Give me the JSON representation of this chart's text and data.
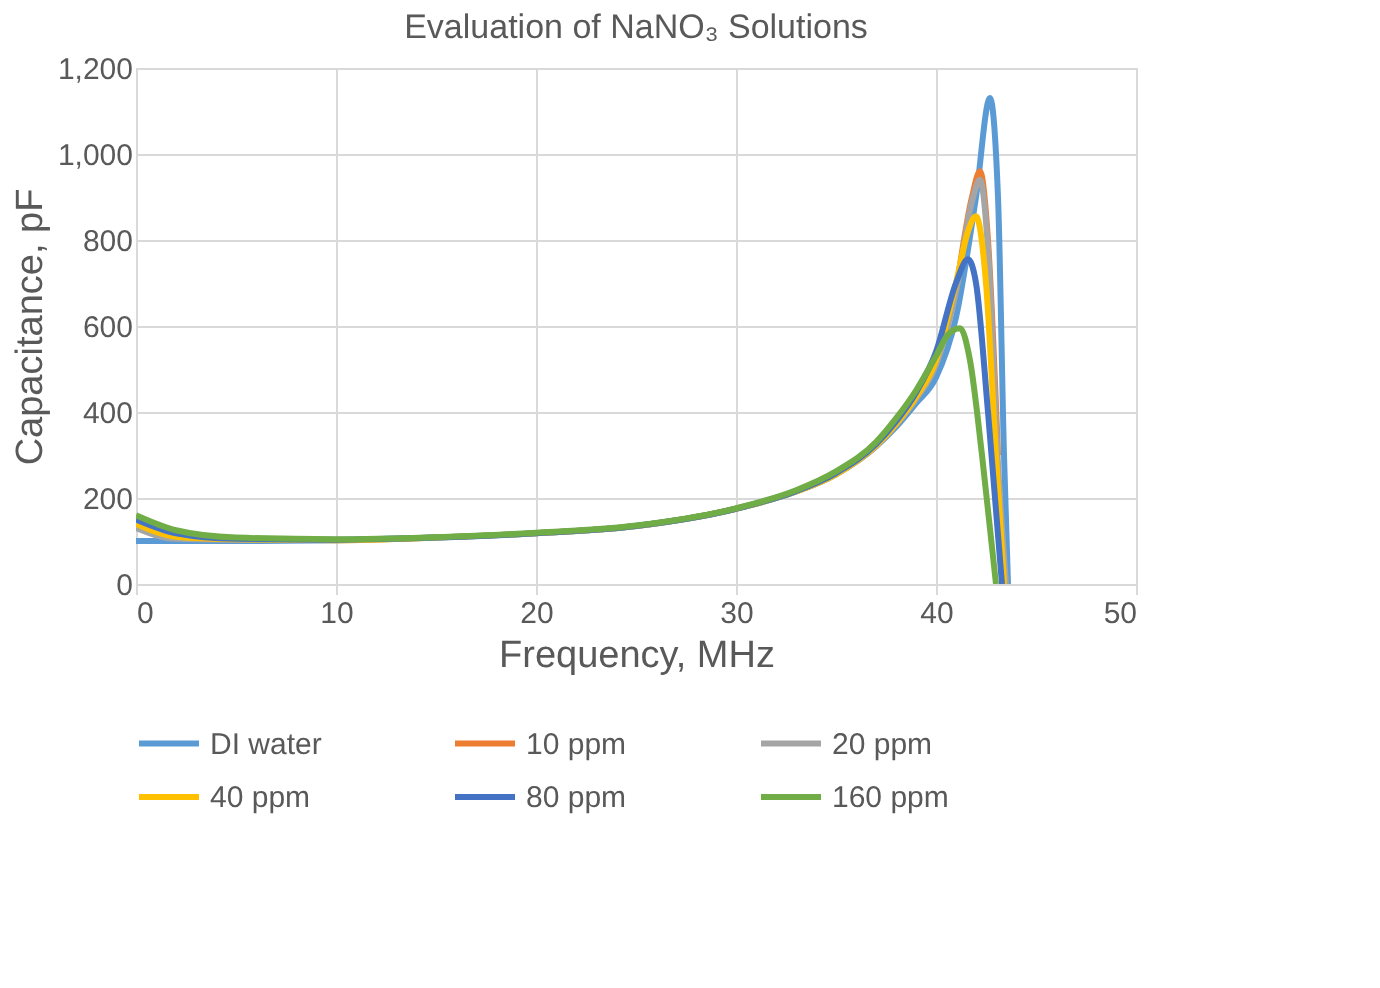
{
  "chart_data": {
    "type": "line",
    "title": "Evaluation of NaNO₃ Solutions",
    "xlabel": "Frequency, MHz",
    "ylabel": "Capacitance, pF",
    "xlim": [
      0,
      50
    ],
    "xticks": [
      0,
      10,
      20,
      30,
      40,
      50
    ],
    "ylim": [
      0,
      1200
    ],
    "yticks": [
      0,
      200,
      400,
      600,
      800,
      {
        "value": 1000,
        "label": "1,000"
      },
      {
        "value": 1200,
        "label": "1,200"
      }
    ],
    "grid": true,
    "legend": "bottom",
    "marker": "none",
    "line_style": "solid",
    "series": [
      {
        "name": "DI water",
        "color": "#5b9bd5",
        "x": [
          0,
          5,
          10,
          15,
          20,
          25,
          30,
          33,
          35,
          37,
          38,
          39,
          40,
          41,
          42,
          42.7,
          43.1,
          43.4,
          43.6
        ],
        "values": [
          100,
          100,
          102,
          108,
          118,
          135,
          175,
          215,
          255,
          320,
          365,
          420,
          480,
          620,
          900,
          1130,
          900,
          300,
          0
        ]
      },
      {
        "name": "10 ppm",
        "color": "#ed7d31",
        "x": [
          41,
          41.8,
          42.2,
          42.6,
          43.1
        ],
        "values": [
          680,
          900,
          960,
          800,
          300
        ]
      },
      {
        "name": "20 ppm",
        "color": "#a5a5a5",
        "x": [
          0,
          2,
          5,
          10,
          15,
          20,
          25,
          30,
          33,
          35,
          37,
          38,
          39,
          40,
          41,
          41.8,
          42.2,
          42.6,
          43.1,
          43.5
        ],
        "values": [
          130,
          105,
          103,
          102,
          108,
          118,
          135,
          175,
          215,
          255,
          320,
          370,
          430,
          510,
          680,
          890,
          940,
          780,
          280,
          0
        ]
      },
      {
        "name": "40 ppm",
        "color": "#ffc000",
        "x": [
          0,
          2,
          5,
          10,
          15,
          20,
          25,
          30,
          33,
          35,
          37,
          38,
          39,
          40,
          41,
          41.6,
          42.0,
          42.5,
          43.0,
          43.4
        ],
        "values": [
          140,
          110,
          104,
          102,
          108,
          118,
          135,
          175,
          215,
          255,
          322,
          372,
          435,
          520,
          700,
          820,
          855,
          700,
          300,
          0
        ]
      },
      {
        "name": "80 ppm",
        "color": "#4472c4",
        "x": [
          0,
          2,
          5,
          10,
          15,
          20,
          25,
          30,
          33,
          35,
          37,
          38,
          39,
          40,
          41,
          41.6,
          42.0,
          42.6,
          43.3
        ],
        "values": [
          150,
          118,
          105,
          103,
          108,
          118,
          135,
          175,
          216,
          258,
          325,
          378,
          445,
          540,
          700,
          755,
          700,
          400,
          0
        ]
      },
      {
        "name": "160 ppm",
        "color": "#70ad47",
        "x": [
          0,
          2,
          5,
          10,
          15,
          20,
          25,
          30,
          33,
          35,
          37,
          38,
          39,
          40,
          40.6,
          41.2,
          41.7,
          42.3,
          43.0
        ],
        "values": [
          160,
          125,
          108,
          104,
          109,
          119,
          136,
          176,
          218,
          262,
          330,
          385,
          450,
          530,
          580,
          595,
          520,
          300,
          0
        ]
      }
    ]
  }
}
